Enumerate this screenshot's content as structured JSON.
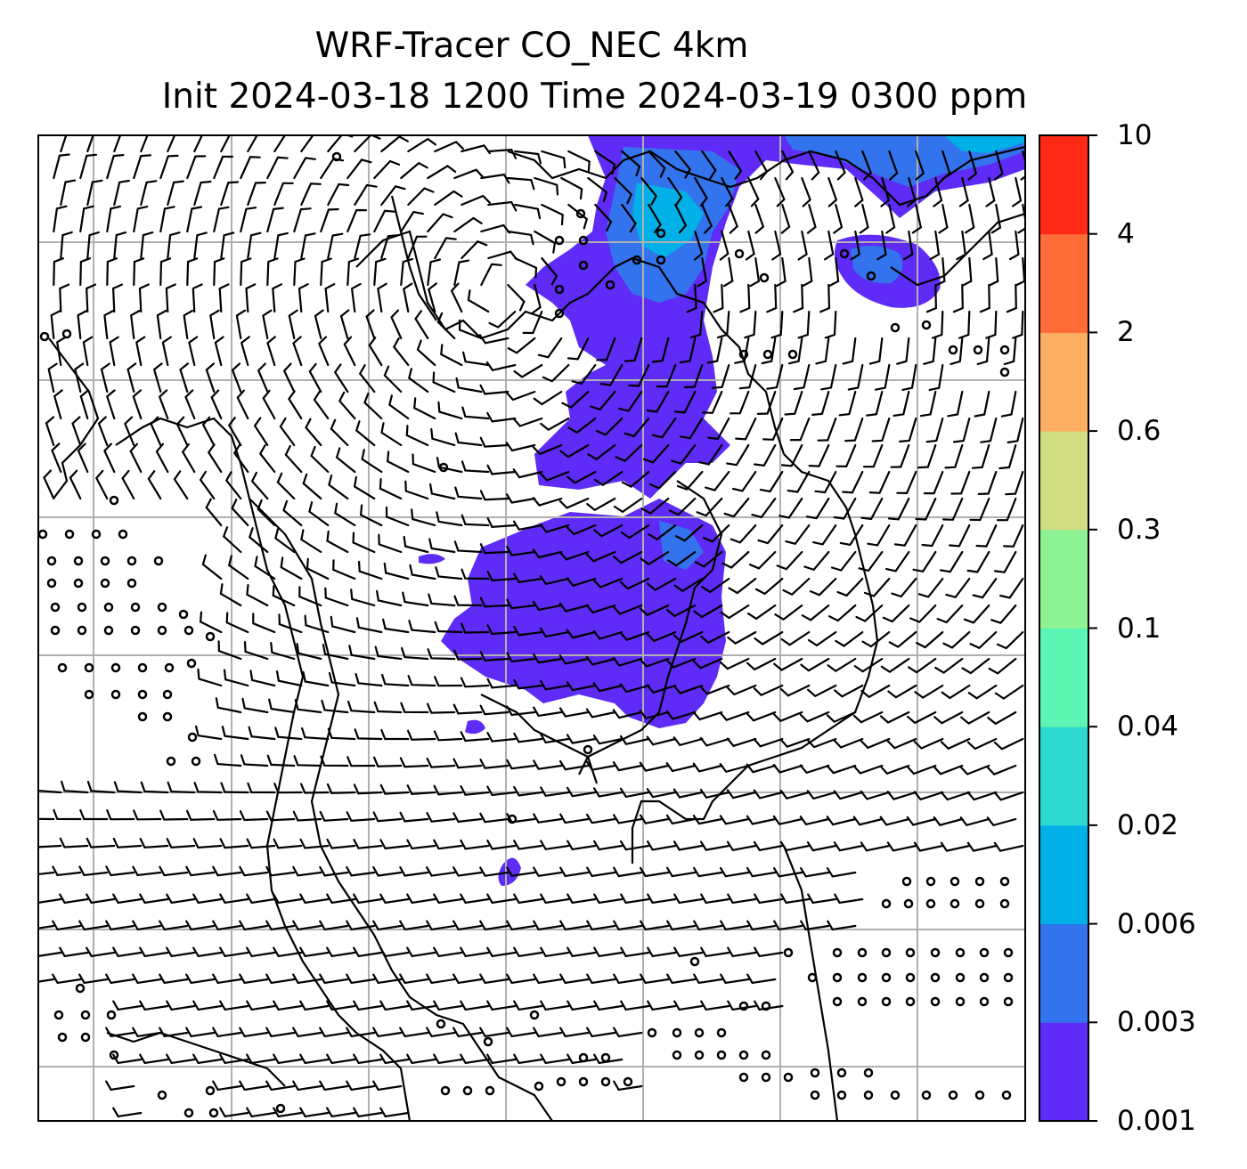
{
  "title": {
    "line1": "WRF-Tracer CO_NEC 4km",
    "line2": "Init 2024-03-18 1200 Time 2024-03-19 0300 ppm"
  },
  "colorbar": {
    "levels": [
      "0.001",
      "0.003",
      "0.006",
      "0.02",
      "0.04",
      "0.1",
      "0.3",
      "0.6",
      "2",
      "4",
      "10"
    ],
    "colors": [
      "#5e2cf6",
      "#3374ee",
      "#00b0e6",
      "#2ed9d0",
      "#5cf5b4",
      "#8df294",
      "#d0dd81",
      "#fcae62",
      "#ff6c37",
      "#ff2a16"
    ]
  },
  "map": {
    "field": "CO_NEC tracer concentration (ppm)",
    "overlays": [
      "coastlines",
      "borders",
      "lat-lon gridlines",
      "wind barbs"
    ],
    "grid": true,
    "plume_colors": {
      "low": "#5e2cf6",
      "mid": "#3374ee",
      "high": "#00b0e6"
    }
  }
}
